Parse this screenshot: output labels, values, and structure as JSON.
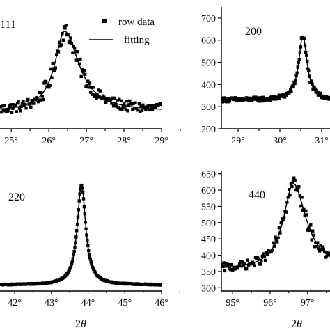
{
  "chart_data": [
    {
      "id": "p111",
      "type": "scatter",
      "panel_label": "111",
      "xlim": [
        24.7,
        29.0
      ],
      "ylim": [
        0,
        1
      ],
      "xticks": [
        25,
        26,
        27,
        28,
        29
      ],
      "xtick_labels": [
        "25°",
        "26°",
        "27°",
        "28°",
        "29°"
      ],
      "yticks": [],
      "ytick_labels": [],
      "xlabel": "",
      "peak": {
        "center": 26.42,
        "width": 0.32,
        "amplitude": 0.66,
        "baseline": 0.14,
        "asym_right": 1.45
      },
      "noise": 0.045,
      "n_points": 170,
      "series": [
        {
          "name": "row data",
          "style": "square-markers"
        },
        {
          "name": "fitting",
          "style": "line"
        }
      ],
      "legend": {
        "entries": [
          "row data",
          "fitting"
        ],
        "position": "top-right"
      }
    },
    {
      "id": "p200",
      "type": "scatter",
      "panel_label": "200",
      "xlim": [
        28.6,
        31.2
      ],
      "ylim": [
        200,
        750
      ],
      "xticks": [
        29,
        30,
        31
      ],
      "xtick_labels": [
        "29°",
        "30°",
        "31°"
      ],
      "yticks": [
        200,
        300,
        400,
        500,
        600,
        700
      ],
      "ytick_labels": [
        "200",
        "300",
        "400",
        "500",
        "600",
        "700"
      ],
      "xlabel": "",
      "peak": {
        "center": 30.55,
        "width": 0.12,
        "amplitude": 290,
        "baseline": 330,
        "asym_right": 1.0
      },
      "noise": 10,
      "n_points": 150,
      "series": [
        {
          "name": "row data",
          "style": "square-markers"
        },
        {
          "name": "fitting",
          "style": "line"
        }
      ]
    },
    {
      "id": "p220",
      "type": "scatter",
      "panel_label": "220",
      "xlim": [
        41.6,
        46.0
      ],
      "ylim": [
        0,
        1
      ],
      "xticks": [
        42,
        43,
        44,
        45,
        46
      ],
      "xtick_labels": [
        "42°",
        "43°",
        "44°",
        "45°",
        "46°"
      ],
      "yticks": [],
      "ytick_labels": [],
      "xlabel": "2θ",
      "peak": {
        "center": 43.82,
        "width": 0.14,
        "amplitude": 0.83,
        "baseline": 0.05,
        "asym_right": 1.0
      },
      "noise": 0.004,
      "n_points": 260,
      "series": [
        {
          "name": "row data",
          "style": "square-markers"
        },
        {
          "name": "fitting",
          "style": "line"
        }
      ]
    },
    {
      "id": "p440",
      "type": "scatter",
      "panel_label": "440",
      "xlim": [
        94.7,
        97.6
      ],
      "ylim": [
        290,
        660
      ],
      "xticks": [
        95,
        96,
        97
      ],
      "xtick_labels": [
        "95°",
        "96°",
        "97°"
      ],
      "yticks": [
        300,
        350,
        400,
        450,
        500,
        550,
        600,
        650
      ],
      "ytick_labels": [
        "300",
        "350",
        "400",
        "450",
        "500",
        "550",
        "600",
        "650"
      ],
      "xlabel": "2θ",
      "peak": {
        "center": 96.62,
        "width": 0.32,
        "amplitude": 265,
        "baseline": 355,
        "asym_right": 1.3
      },
      "noise": 14,
      "n_points": 110,
      "series": [
        {
          "name": "row data",
          "style": "square-markers"
        },
        {
          "name": "fitting",
          "style": "line"
        }
      ]
    }
  ]
}
